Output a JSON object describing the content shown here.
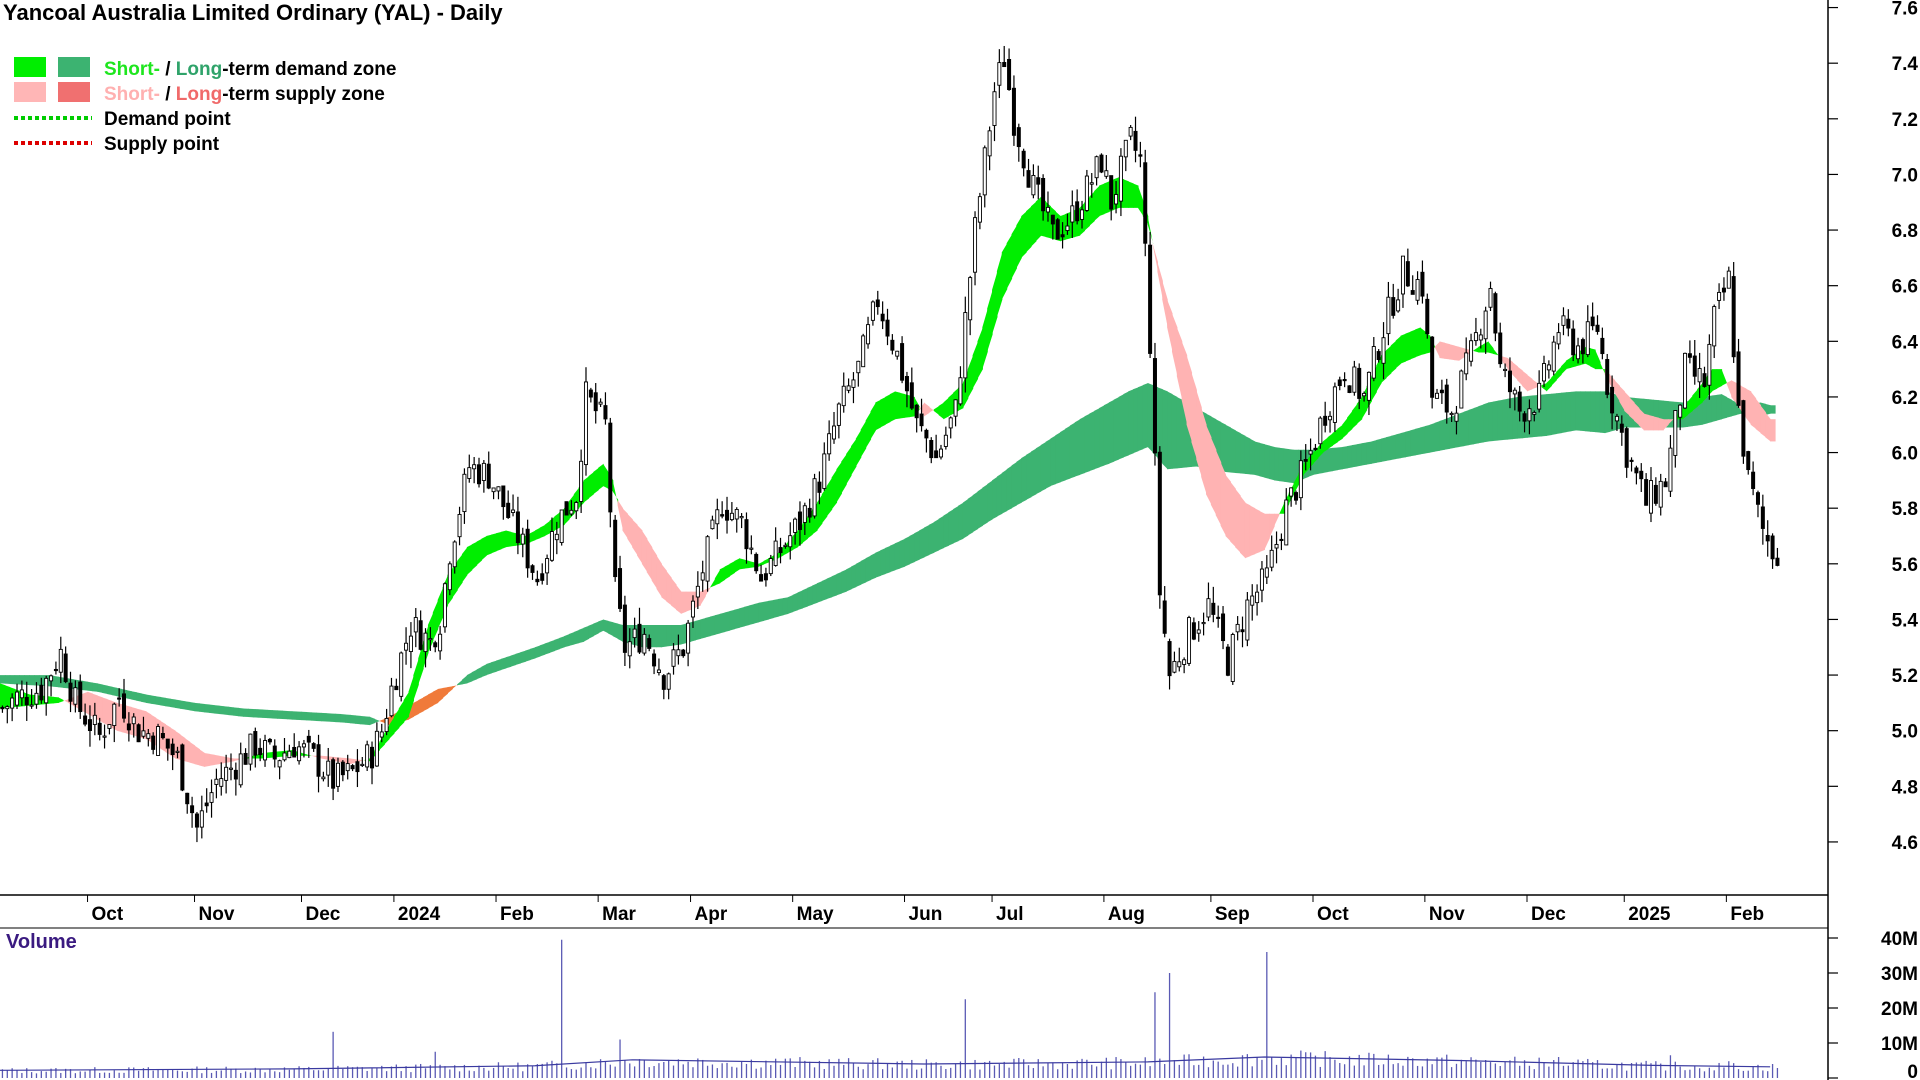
{
  "chart_data": {
    "type": "candlestick",
    "title": "Yancoal Australia Limited Ordinary (YAL) - Daily",
    "legend": {
      "placement": "top-left",
      "items": [
        {
          "id": "demand",
          "parts": [
            {
              "text": "Short-",
              "color": "#1ee61e"
            },
            {
              "text": " / ",
              "color": "#000000"
            },
            {
              "text": "Long",
              "color": "#2fa36a"
            },
            {
              "text": "-term demand zone",
              "color": "#000000"
            }
          ],
          "swatches": [
            "#00ee00",
            "#3cb371"
          ]
        },
        {
          "id": "supply",
          "parts": [
            {
              "text": "Short-",
              "color": "#ffb0b0"
            },
            {
              "text": " / ",
              "color": "#000000"
            },
            {
              "text": "Long",
              "color": "#f06a6a"
            },
            {
              "text": "-term supply zone",
              "color": "#000000"
            }
          ],
          "swatches": [
            "#ffb6b6",
            "#f07070"
          ]
        },
        {
          "id": "demand-point",
          "parts": [
            {
              "text": "Demand point",
              "color": "#000000"
            }
          ],
          "line_color": "#00cc00"
        },
        {
          "id": "supply-point",
          "parts": [
            {
              "text": "Supply point",
              "color": "#000000"
            }
          ],
          "line_color": "#dd0000"
        }
      ]
    },
    "y_axis": {
      "position": "right",
      "ylim": [
        4.42,
        7.62
      ],
      "ticks": [
        4.6,
        4.8,
        5.0,
        5.2,
        5.4,
        5.6,
        5.8,
        6.0,
        6.2,
        6.4,
        6.6,
        6.8,
        7.0,
        7.2,
        7.4,
        7.6
      ],
      "tick_labels": [
        "4.6",
        "4.8",
        "5.0",
        "5.2",
        "5.4",
        "5.6",
        "5.8",
        "6.0",
        "6.2",
        "6.4",
        "6.6",
        "6.8",
        "7.0",
        "7.2",
        "7.4",
        "7.6"
      ]
    },
    "x_axis": {
      "xlim": [
        0,
        365
      ],
      "labels": [
        {
          "t": 18,
          "text": "Oct"
        },
        {
          "t": 40,
          "text": "Nov"
        },
        {
          "t": 62,
          "text": "Dec"
        },
        {
          "t": 81,
          "text": "2024"
        },
        {
          "t": 102,
          "text": "Feb"
        },
        {
          "t": 123,
          "text": "Mar"
        },
        {
          "t": 142,
          "text": "Apr"
        },
        {
          "t": 163,
          "text": "May"
        },
        {
          "t": 186,
          "text": "Jun"
        },
        {
          "t": 204,
          "text": "Jul"
        },
        {
          "t": 227,
          "text": "Aug"
        },
        {
          "t": 249,
          "text": "Sep"
        },
        {
          "t": 270,
          "text": "Oct"
        },
        {
          "t": 293,
          "text": "Nov"
        },
        {
          "t": 314,
          "text": "Dec"
        },
        {
          "t": 334,
          "text": "2025"
        },
        {
          "t": 355,
          "text": "Feb"
        }
      ]
    },
    "price_path": [
      [
        0,
        5.08
      ],
      [
        3,
        5.12
      ],
      [
        8,
        5.15
      ],
      [
        12,
        5.28
      ],
      [
        15,
        5.1
      ],
      [
        20,
        4.98
      ],
      [
        24,
        5.12
      ],
      [
        28,
        5.0
      ],
      [
        32,
        4.98
      ],
      [
        36,
        4.9
      ],
      [
        40,
        4.65
      ],
      [
        44,
        4.82
      ],
      [
        48,
        4.88
      ],
      [
        52,
        4.95
      ],
      [
        56,
        4.9
      ],
      [
        60,
        4.95
      ],
      [
        64,
        4.9
      ],
      [
        68,
        4.82
      ],
      [
        72,
        4.85
      ],
      [
        76,
        4.92
      ],
      [
        78,
        5.0
      ],
      [
        80,
        5.15
      ],
      [
        84,
        5.38
      ],
      [
        88,
        5.32
      ],
      [
        90,
        5.4
      ],
      [
        92,
        5.65
      ],
      [
        96,
        5.95
      ],
      [
        100,
        5.92
      ],
      [
        102,
        5.85
      ],
      [
        106,
        5.7
      ],
      [
        110,
        5.55
      ],
      [
        114,
        5.75
      ],
      [
        118,
        5.85
      ],
      [
        120,
        6.2
      ],
      [
        124,
        6.1
      ],
      [
        126,
        5.5
      ],
      [
        128,
        5.3
      ],
      [
        132,
        5.35
      ],
      [
        136,
        5.2
      ],
      [
        140,
        5.3
      ],
      [
        144,
        5.58
      ],
      [
        148,
        5.82
      ],
      [
        152,
        5.75
      ],
      [
        156,
        5.55
      ],
      [
        160,
        5.65
      ],
      [
        164,
        5.75
      ],
      [
        168,
        5.9
      ],
      [
        172,
        6.15
      ],
      [
        176,
        6.3
      ],
      [
        180,
        6.55
      ],
      [
        184,
        6.35
      ],
      [
        188,
        6.1
      ],
      [
        190,
        6.05
      ],
      [
        192,
        5.98
      ],
      [
        196,
        6.15
      ],
      [
        200,
        6.8
      ],
      [
        204,
        7.3
      ],
      [
        206,
        7.42
      ],
      [
        208,
        7.2
      ],
      [
        212,
        6.95
      ],
      [
        216,
        6.78
      ],
      [
        220,
        6.85
      ],
      [
        224,
        6.98
      ],
      [
        226,
        7.05
      ],
      [
        228,
        6.9
      ],
      [
        232,
        7.12
      ],
      [
        234,
        7.05
      ],
      [
        236,
        6.4
      ],
      [
        238,
        5.5
      ],
      [
        240,
        5.2
      ],
      [
        244,
        5.35
      ],
      [
        248,
        5.45
      ],
      [
        252,
        5.25
      ],
      [
        256,
        5.45
      ],
      [
        260,
        5.55
      ],
      [
        264,
        5.8
      ],
      [
        268,
        5.95
      ],
      [
        272,
        6.15
      ],
      [
        276,
        6.3
      ],
      [
        280,
        6.2
      ],
      [
        284,
        6.45
      ],
      [
        288,
        6.65
      ],
      [
        292,
        6.6
      ],
      [
        294,
        6.2
      ],
      [
        298,
        6.15
      ],
      [
        302,
        6.35
      ],
      [
        306,
        6.6
      ],
      [
        308,
        6.3
      ],
      [
        312,
        6.15
      ],
      [
        316,
        6.2
      ],
      [
        320,
        6.45
      ],
      [
        324,
        6.38
      ],
      [
        328,
        6.45
      ],
      [
        330,
        6.25
      ],
      [
        334,
        6.0
      ],
      [
        338,
        5.82
      ],
      [
        342,
        5.9
      ],
      [
        346,
        6.3
      ],
      [
        350,
        6.25
      ],
      [
        352,
        6.48
      ],
      [
        355,
        6.62
      ],
      [
        357,
        6.15
      ],
      [
        359,
        5.9
      ],
      [
        362,
        5.72
      ],
      [
        364,
        5.65
      ]
    ],
    "zones": {
      "short_term": [
        [
          0,
          5.17,
          5.08
        ],
        [
          6,
          5.13,
          5.09
        ],
        [
          12,
          5.12,
          5.1
        ],
        [
          18,
          5.06,
          5.14
        ],
        [
          24,
          5.0,
          5.1
        ],
        [
          30,
          4.97,
          5.07
        ],
        [
          36,
          4.9,
          5.0
        ],
        [
          42,
          4.87,
          4.92
        ],
        [
          48,
          4.89,
          4.9
        ],
        [
          54,
          4.92,
          4.9
        ],
        [
          60,
          4.93,
          4.91
        ],
        [
          66,
          4.9,
          4.91
        ],
        [
          72,
          4.88,
          4.9
        ],
        [
          76,
          4.9,
          4.89
        ],
        [
          80,
          5.02,
          4.97
        ],
        [
          84,
          5.14,
          5.05
        ],
        [
          88,
          5.38,
          5.28
        ],
        [
          92,
          5.56,
          5.45
        ],
        [
          96,
          5.66,
          5.56
        ],
        [
          100,
          5.7,
          5.63
        ],
        [
          104,
          5.72,
          5.66
        ],
        [
          108,
          5.7,
          5.67
        ],
        [
          112,
          5.74,
          5.7
        ],
        [
          116,
          5.8,
          5.74
        ],
        [
          120,
          5.9,
          5.82
        ],
        [
          124,
          5.96,
          5.88
        ],
        [
          126,
          5.9,
          5.86
        ],
        [
          128,
          5.72,
          5.8
        ],
        [
          132,
          5.6,
          5.72
        ],
        [
          136,
          5.48,
          5.6
        ],
        [
          140,
          5.42,
          5.5
        ],
        [
          144,
          5.45,
          5.5
        ],
        [
          148,
          5.58,
          5.53
        ],
        [
          152,
          5.62,
          5.58
        ],
        [
          156,
          5.6,
          5.59
        ],
        [
          160,
          5.64,
          5.62
        ],
        [
          164,
          5.72,
          5.66
        ],
        [
          168,
          5.82,
          5.72
        ],
        [
          172,
          5.94,
          5.82
        ],
        [
          176,
          6.05,
          5.95
        ],
        [
          180,
          6.18,
          6.08
        ],
        [
          184,
          6.22,
          6.12
        ],
        [
          188,
          6.2,
          6.13
        ],
        [
          190,
          6.13,
          6.18
        ],
        [
          194,
          6.18,
          6.12
        ],
        [
          198,
          6.25,
          6.16
        ],
        [
          202,
          6.45,
          6.3
        ],
        [
          206,
          6.72,
          6.55
        ],
        [
          210,
          6.85,
          6.7
        ],
        [
          214,
          6.92,
          6.78
        ],
        [
          218,
          6.85,
          6.76
        ],
        [
          222,
          6.88,
          6.78
        ],
        [
          226,
          6.96,
          6.85
        ],
        [
          230,
          6.99,
          6.88
        ],
        [
          234,
          6.96,
          6.88
        ],
        [
          236,
          6.85,
          6.82
        ],
        [
          240,
          6.45,
          6.55
        ],
        [
          244,
          6.1,
          6.35
        ],
        [
          248,
          5.85,
          6.1
        ],
        [
          252,
          5.7,
          5.92
        ],
        [
          256,
          5.62,
          5.82
        ],
        [
          260,
          5.65,
          5.78
        ],
        [
          264,
          5.82,
          5.78
        ],
        [
          268,
          5.96,
          5.92
        ],
        [
          272,
          6.04,
          6.0
        ],
        [
          276,
          6.1,
          6.05
        ],
        [
          280,
          6.2,
          6.12
        ],
        [
          284,
          6.35,
          6.25
        ],
        [
          288,
          6.42,
          6.32
        ],
        [
          292,
          6.45,
          6.35
        ],
        [
          294,
          6.42,
          6.36
        ],
        [
          296,
          6.34,
          6.4
        ],
        [
          300,
          6.33,
          6.38
        ],
        [
          304,
          6.38,
          6.36
        ],
        [
          306,
          6.4,
          6.36
        ],
        [
          310,
          6.3,
          6.34
        ],
        [
          314,
          6.22,
          6.28
        ],
        [
          318,
          6.25,
          6.22
        ],
        [
          322,
          6.33,
          6.3
        ],
        [
          326,
          6.38,
          6.32
        ],
        [
          328,
          6.37,
          6.3
        ],
        [
          330,
          6.28,
          6.3
        ],
        [
          334,
          6.15,
          6.22
        ],
        [
          338,
          6.08,
          6.14
        ],
        [
          342,
          6.08,
          6.12
        ],
        [
          346,
          6.16,
          6.12
        ],
        [
          350,
          6.25,
          6.18
        ],
        [
          352,
          6.3,
          6.22
        ],
        [
          354,
          6.3,
          6.24
        ],
        [
          356,
          6.2,
          6.26
        ],
        [
          360,
          6.1,
          6.22
        ],
        [
          364,
          6.04,
          6.12
        ]
      ],
      "long_term": [
        [
          0,
          5.2,
          5.17
        ],
        [
          10,
          5.2,
          5.16
        ],
        [
          20,
          5.17,
          5.14
        ],
        [
          30,
          5.13,
          5.1
        ],
        [
          40,
          5.1,
          5.07
        ],
        [
          50,
          5.08,
          5.05
        ],
        [
          60,
          5.07,
          5.04
        ],
        [
          70,
          5.06,
          5.03
        ],
        [
          76,
          5.05,
          5.02
        ],
        [
          80,
          5.02,
          5.05
        ],
        [
          84,
          5.04,
          5.09
        ],
        [
          90,
          5.1,
          5.15
        ],
        [
          96,
          5.2,
          5.17
        ],
        [
          100,
          5.24,
          5.2
        ],
        [
          110,
          5.3,
          5.26
        ],
        [
          116,
          5.34,
          5.3
        ],
        [
          120,
          5.37,
          5.32
        ],
        [
          124,
          5.4,
          5.36
        ],
        [
          128,
          5.38,
          5.32
        ],
        [
          132,
          5.38,
          5.3
        ],
        [
          136,
          5.38,
          5.3
        ],
        [
          140,
          5.38,
          5.31
        ],
        [
          144,
          5.4,
          5.33
        ],
        [
          150,
          5.43,
          5.36
        ],
        [
          156,
          5.46,
          5.39
        ],
        [
          162,
          5.48,
          5.42
        ],
        [
          168,
          5.53,
          5.46
        ],
        [
          174,
          5.58,
          5.5
        ],
        [
          180,
          5.64,
          5.55
        ],
        [
          186,
          5.69,
          5.59
        ],
        [
          192,
          5.75,
          5.64
        ],
        [
          198,
          5.82,
          5.69
        ],
        [
          204,
          5.9,
          5.76
        ],
        [
          210,
          5.98,
          5.82
        ],
        [
          216,
          6.05,
          5.88
        ],
        [
          222,
          6.12,
          5.92
        ],
        [
          228,
          6.18,
          5.96
        ],
        [
          232,
          6.22,
          5.99
        ],
        [
          236,
          6.25,
          6.02
        ],
        [
          240,
          6.22,
          5.94
        ],
        [
          246,
          6.16,
          5.95
        ],
        [
          252,
          6.1,
          5.93
        ],
        [
          258,
          6.04,
          5.92
        ],
        [
          262,
          6.02,
          5.9
        ],
        [
          266,
          6.01,
          5.89
        ],
        [
          270,
          6.01,
          5.92
        ],
        [
          276,
          6.02,
          5.94
        ],
        [
          282,
          6.04,
          5.96
        ],
        [
          288,
          6.07,
          5.98
        ],
        [
          294,
          6.1,
          6.0
        ],
        [
          300,
          6.14,
          6.02
        ],
        [
          306,
          6.18,
          6.04
        ],
        [
          312,
          6.2,
          6.05
        ],
        [
          318,
          6.21,
          6.06
        ],
        [
          324,
          6.22,
          6.08
        ],
        [
          330,
          6.22,
          6.07
        ],
        [
          334,
          6.2,
          6.09
        ],
        [
          340,
          6.19,
          6.09
        ],
        [
          346,
          6.18,
          6.09
        ],
        [
          350,
          6.2,
          6.1
        ],
        [
          354,
          6.21,
          6.12
        ],
        [
          358,
          6.17,
          6.14
        ],
        [
          362,
          6.18,
          6.13
        ],
        [
          364,
          6.17,
          6.14
        ]
      ]
    },
    "volume": {
      "label": "Volume",
      "ylim": [
        0,
        40
      ],
      "ticks": [
        0,
        10,
        20,
        30,
        40
      ],
      "tick_labels": [
        "0",
        "10M",
        "20M",
        "30M",
        "40M"
      ],
      "baseline_level": [
        [
          0,
          2.2
        ],
        [
          60,
          2.6
        ],
        [
          110,
          3.5
        ],
        [
          130,
          5.2
        ],
        [
          190,
          4.0
        ],
        [
          236,
          4.6
        ],
        [
          260,
          6.0
        ],
        [
          300,
          5.0
        ],
        [
          340,
          3.6
        ],
        [
          364,
          3.2
        ]
      ],
      "spikes": [
        [
          68,
          13.2
        ],
        [
          89,
          7.5
        ],
        [
          115,
          39.5
        ],
        [
          127,
          11.0
        ],
        [
          198,
          22.5
        ],
        [
          237,
          24.5
        ],
        [
          240,
          30.0
        ],
        [
          260,
          36.0
        ],
        [
          320,
          6.0
        ],
        [
          343,
          6.5
        ],
        [
          355,
          4.8
        ]
      ]
    }
  }
}
